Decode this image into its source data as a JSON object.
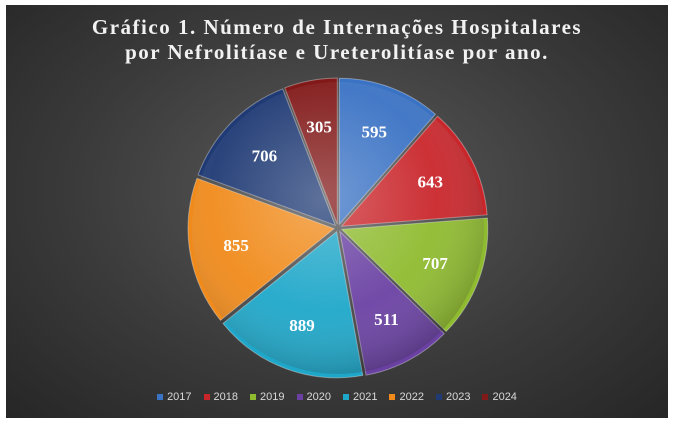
{
  "chart_data": {
    "type": "pie",
    "title_lines": [
      "Gráfico 1. Número de Internações Hospitalares",
      "por Nefrolitíase e Ureterolitíase por ano."
    ],
    "categories": [
      "2017",
      "2018",
      "2019",
      "2020",
      "2021",
      "2022",
      "2023",
      "2024"
    ],
    "values": [
      595,
      643,
      707,
      511,
      889,
      855,
      706,
      305
    ],
    "colors": [
      "#3a72c4",
      "#c9262b",
      "#8fbb2f",
      "#6a41a3",
      "#1ea7c9",
      "#f08a1a",
      "#1f3a74",
      "#821919"
    ],
    "legend_position": "bottom",
    "data_labels": true
  }
}
